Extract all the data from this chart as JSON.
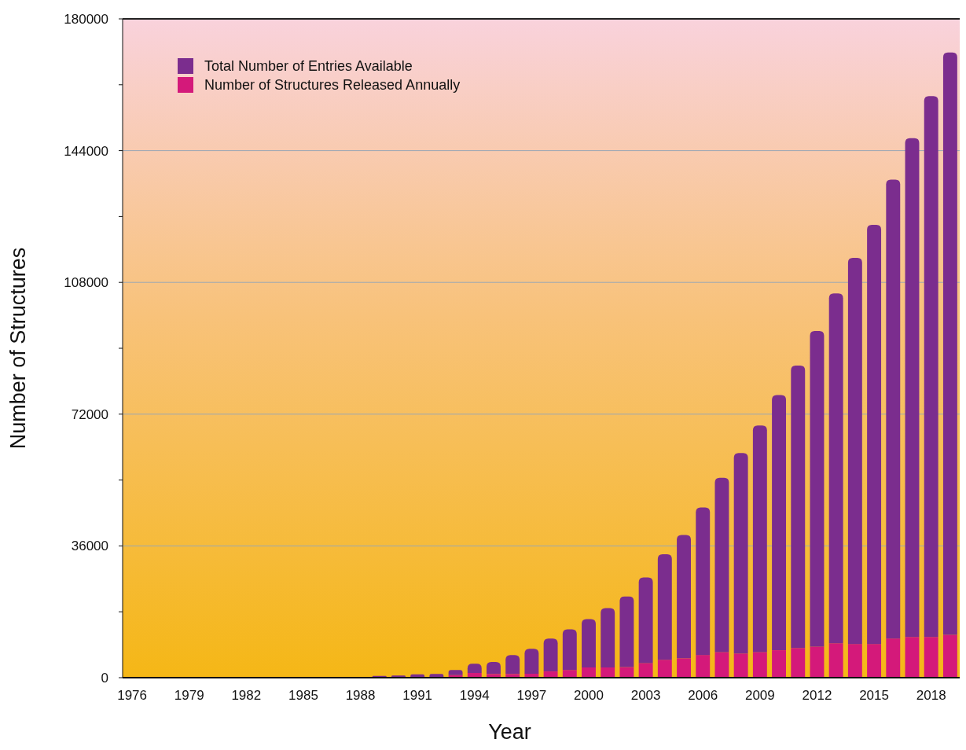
{
  "chart_data": {
    "type": "bar",
    "xlabel": "Year",
    "ylabel": "Number of Structures",
    "stacked": true,
    "categories": [
      "1976",
      null,
      null,
      "1979",
      null,
      null,
      "1982",
      null,
      null,
      "1985",
      null,
      null,
      "1988",
      null,
      null,
      "1991",
      null,
      null,
      "1994",
      null,
      null,
      "1997",
      null,
      null,
      "2000",
      null,
      null,
      "2003",
      null,
      null,
      "2006",
      null,
      null,
      "2009",
      null,
      null,
      "2012",
      null,
      null,
      "2015",
      null,
      null,
      "2018",
      null
    ],
    "series": [
      {
        "name": "Number of Structures Released Annually",
        "color": "#d4197a",
        "values": [
          0,
          0,
          0,
          0,
          0,
          0,
          0,
          0,
          0,
          0,
          0,
          0,
          0,
          null,
          null,
          null,
          null,
          700,
          1300,
          1000,
          1000,
          1100,
          1700,
          2100,
          2800,
          2800,
          2900,
          4000,
          4900,
          5300,
          6200,
          7000,
          6600,
          7000,
          7500,
          8100,
          8500,
          9400,
          9200,
          9200,
          10700,
          11100,
          11100,
          11700
        ]
      },
      {
        "name": "Total Number of Entries Available",
        "color": "#7b2d8e",
        "values": [
          0,
          0,
          0,
          0,
          0,
          0,
          0,
          0,
          0,
          0,
          0,
          0,
          0,
          500,
          600,
          900,
          1000,
          1400,
          2500,
          3300,
          5200,
          6800,
          9000,
          11100,
          13200,
          16200,
          19300,
          23400,
          28800,
          33700,
          40300,
          47600,
          54800,
          61900,
          69700,
          77200,
          86200,
          95600,
          105500,
          114500,
          125400,
          136300,
          147800,
          159100
        ]
      }
    ],
    "ylim": [
      0,
      180000
    ],
    "yticks": [
      0,
      {
        "value": 18000,
        "label": null
      },
      36000,
      {
        "value": 54000,
        "label": null
      },
      72000,
      {
        "value": 90000,
        "label": null
      },
      108000,
      {
        "value": 126000,
        "label": null
      },
      144000,
      {
        "value": 162000,
        "label": null
      },
      180000
    ],
    "grid": "y",
    "legend": "top left"
  }
}
